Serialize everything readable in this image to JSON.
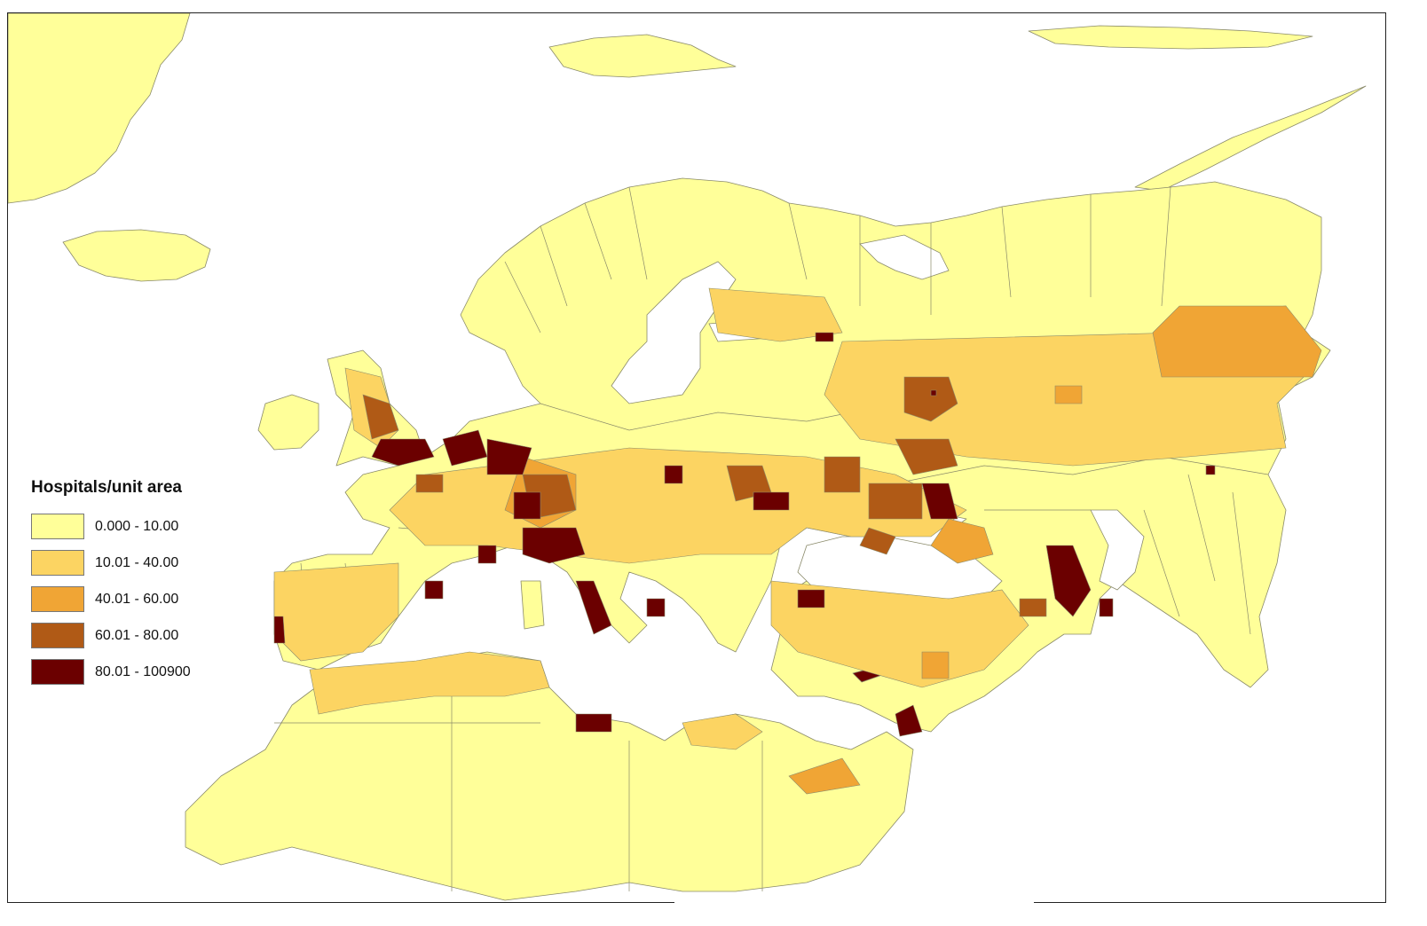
{
  "legend": {
    "title": "Hospitals/unit area",
    "classes": [
      {
        "label": "0.000 - 10.00",
        "color": "#ffff99"
      },
      {
        "label": "10.01 - 40.00",
        "color": "#fcd462"
      },
      {
        "label": "40.01 - 60.00",
        "color": "#f0a535"
      },
      {
        "label": "60.01 - 80.00",
        "color": "#b05a16"
      },
      {
        "label": "80.01 - 100900",
        "color": "#6b0000"
      }
    ]
  },
  "colors": {
    "water": "#ffffff",
    "outline": "#8a8a6a",
    "frame": "#222222"
  }
}
